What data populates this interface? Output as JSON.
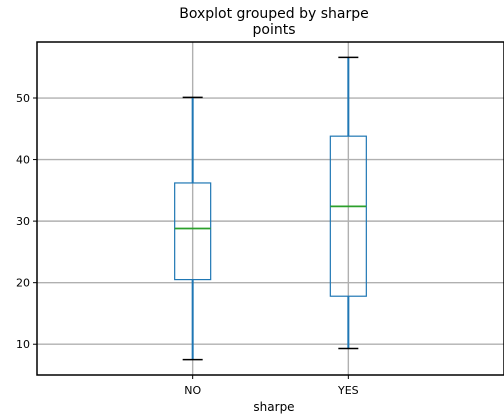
{
  "chart_data": {
    "type": "box",
    "title": "Boxplot grouped by sharpe",
    "subtitle": "points",
    "xlabel": "sharpe",
    "ylabel": "",
    "categories": [
      "NO",
      "YES"
    ],
    "boxes": [
      {
        "category": "NO",
        "whisker_low": 7.5,
        "q1": 20.5,
        "median": 28.8,
        "q3": 36.2,
        "whisker_high": 50.1
      },
      {
        "category": "YES",
        "whisker_low": 9.3,
        "q1": 17.8,
        "median": 32.4,
        "q3": 43.8,
        "whisker_high": 56.6
      }
    ],
    "ylim": [
      5,
      59.1
    ],
    "yticks": [
      10,
      20,
      30,
      40,
      50
    ],
    "grid": true,
    "colors": {
      "box": "#1f77b4",
      "median": "#2ca02c",
      "whisker": "#1f77b4",
      "cap": "#000000",
      "grid": "#b0b0b0"
    }
  }
}
